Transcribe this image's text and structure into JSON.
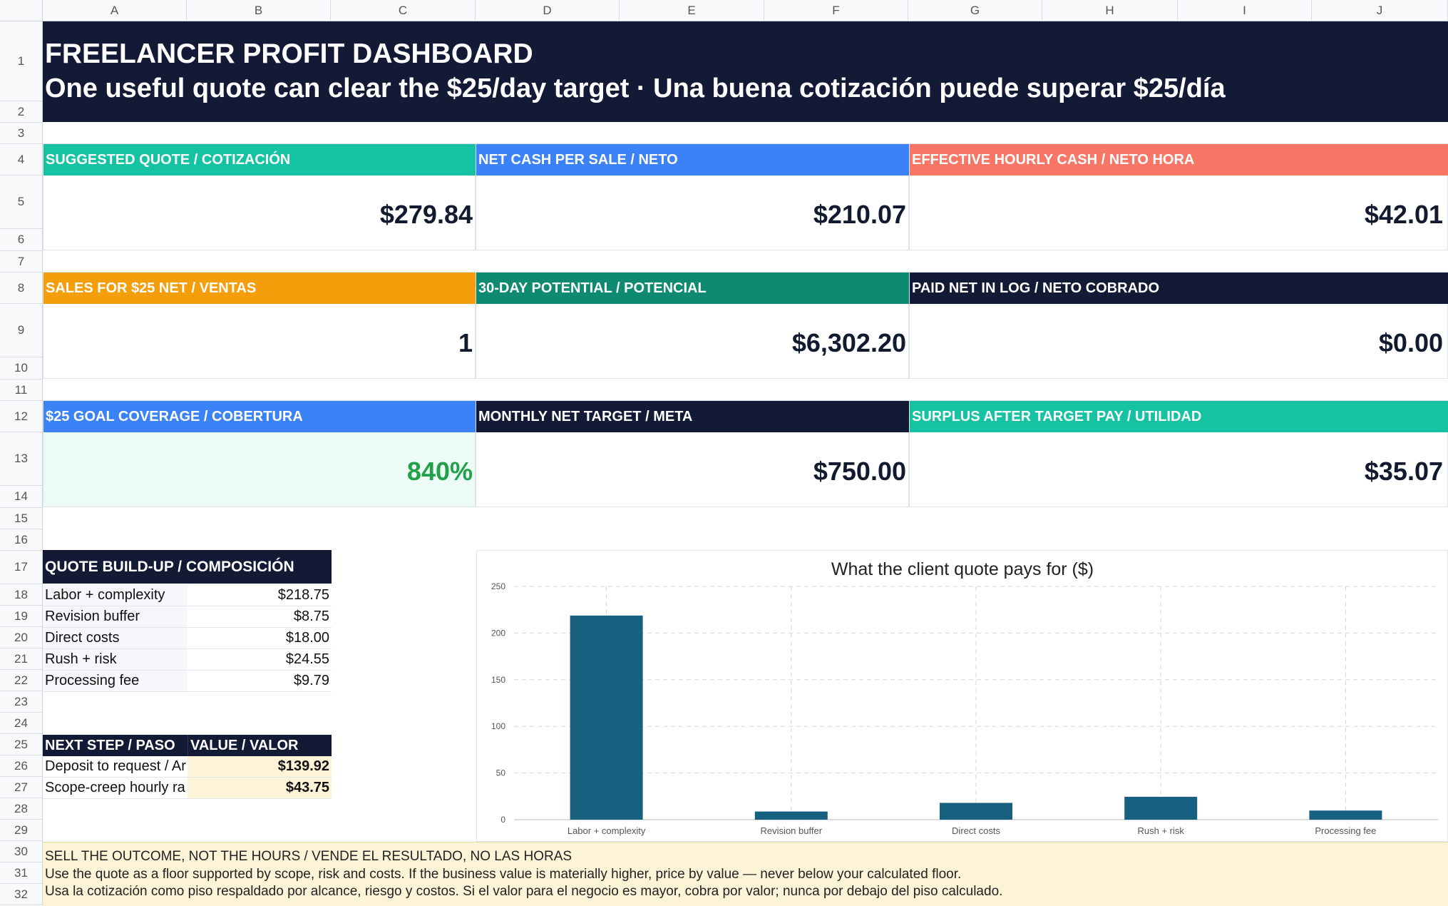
{
  "sheet": {
    "columns": [
      "A",
      "B",
      "C",
      "D",
      "E",
      "F",
      "G",
      "H",
      "I",
      "J"
    ],
    "rows": [
      "1",
      "2",
      "3",
      "4",
      "5",
      "6",
      "7",
      "8",
      "9",
      "10",
      "11",
      "12",
      "13",
      "14",
      "15",
      "16",
      "17",
      "18",
      "19",
      "20",
      "21",
      "22",
      "23",
      "24",
      "25",
      "26",
      "27",
      "28",
      "29",
      "30",
      "31",
      "32"
    ]
  },
  "header": {
    "title": "FREELANCER PROFIT DASHBOARD",
    "subtitle": "One useful quote can clear the $25/day target · Una buena cotización puede superar $25/día"
  },
  "kpis": [
    {
      "label": "SUGGESTED QUOTE / COTIZACIÓN",
      "value": "$279.84",
      "header_color": "#15c3a3"
    },
    {
      "label": "NET CASH PER SALE / NETO",
      "value": "$210.07",
      "header_color": "#3b82f6"
    },
    {
      "label": "EFFECTIVE HOURLY CASH / NETO HORA",
      "value": "$42.01",
      "header_color": "#f87666"
    },
    {
      "label": "SALES FOR $25 NET / VENTAS",
      "value": "1",
      "header_color": "#f59e0b"
    },
    {
      "label": "30-DAY POTENTIAL / POTENCIAL",
      "value": "$6,302.20",
      "header_color": "#0e8a70"
    },
    {
      "label": "PAID NET IN LOG / NETO COBRADO",
      "value": "$0.00",
      "header_color": "#131a35"
    },
    {
      "label": "$25 GOAL COVERAGE / COBERTURA",
      "value": "840%",
      "header_color": "#3b82f6",
      "value_color": "#22a04a",
      "body_color": "#ecfbf5"
    },
    {
      "label": "MONTHLY NET TARGET / META",
      "value": "$750.00",
      "header_color": "#131a35"
    },
    {
      "label": "SURPLUS AFTER TARGET PAY / UTILIDAD",
      "value": "$35.07",
      "header_color": "#15c3a3"
    }
  ],
  "quote_buildup": {
    "header": "QUOTE BUILD-UP / COMPOSICIÓN",
    "rows": [
      {
        "label": "Labor + complexity",
        "value": "$218.75"
      },
      {
        "label": "Revision buffer",
        "value": "$8.75"
      },
      {
        "label": "Direct costs",
        "value": "$18.00"
      },
      {
        "label": "Rush + risk",
        "value": "$24.55"
      },
      {
        "label": "Processing fee",
        "value": "$9.79"
      }
    ]
  },
  "next_step": {
    "header_step": "NEXT STEP / PASO",
    "header_value": "VALUE / VALOR",
    "rows": [
      {
        "label": "Deposit to request / Ar",
        "value": "$139.92"
      },
      {
        "label": "Scope-creep hourly ra",
        "value": "$43.75"
      }
    ]
  },
  "chart_data": {
    "type": "bar",
    "title": "What the client quote pays for ($)",
    "categories": [
      "Labor + complexity",
      "Revision buffer",
      "Direct costs",
      "Rush + risk",
      "Processing fee"
    ],
    "values": [
      218.75,
      8.75,
      18.0,
      24.55,
      9.79
    ],
    "ylim": [
      0,
      250
    ],
    "yticks": [
      0,
      50,
      100,
      150,
      200,
      250
    ],
    "grid": true,
    "bar_color": "#17607f",
    "xlabel": "",
    "ylabel": ""
  },
  "note": {
    "heading": "SELL THE OUTCOME, NOT THE HOURS / VENDE EL RESULTADO, NO LAS HORAS",
    "line_en": "Use the quote as a floor supported by scope, risk and costs. If the business value is materially higher, price by value — never below your calculated floor.",
    "line_es": "Usa la cotización como piso respaldado por alcance, riesgo y costos. Si el valor para el negocio es mayor, cobra por valor; nunca por debajo del piso calculado."
  }
}
